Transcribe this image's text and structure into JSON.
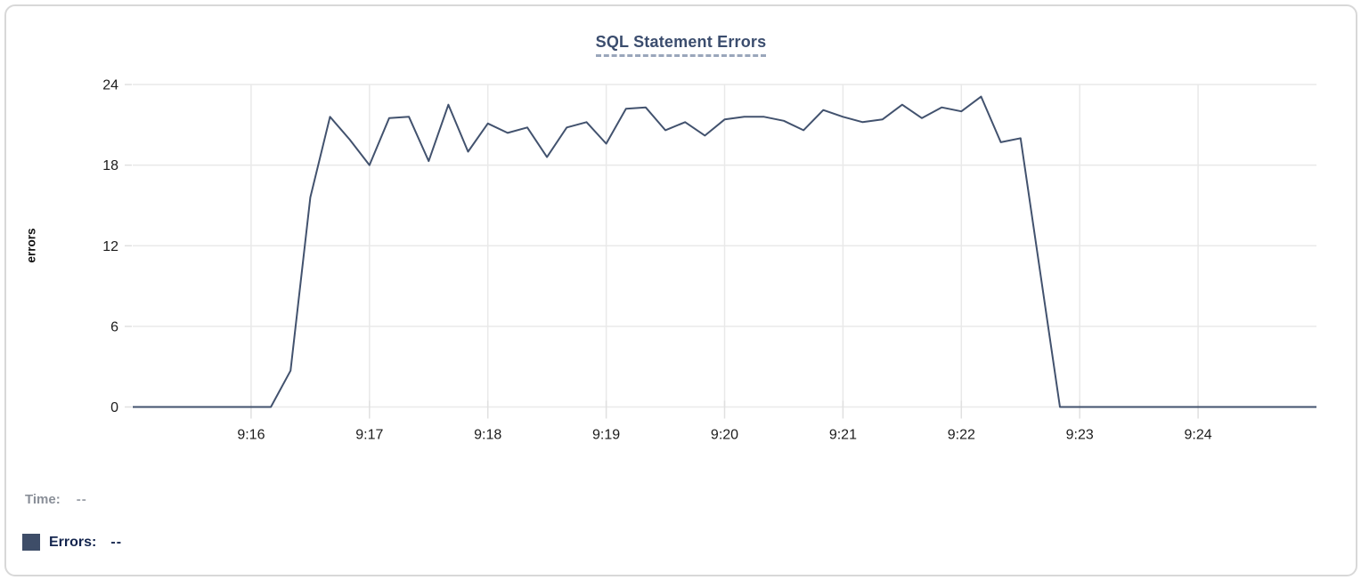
{
  "chart": {
    "y_axis_title": "errors"
  },
  "chart_data": {
    "type": "line",
    "title": "SQL Statement Errors",
    "xlabel": "",
    "ylabel": "errors",
    "ylim": [
      0,
      24
    ],
    "y_ticks": [
      0,
      6,
      12,
      18,
      24
    ],
    "x_tick_labels": [
      "9:16",
      "9:17",
      "9:18",
      "9:19",
      "9:20",
      "9:21",
      "9:22",
      "9:23",
      "9:24"
    ],
    "grid": true,
    "legend_position": "bottom-left",
    "line_color": "#3e4d68",
    "x": [
      "9:15:00",
      "9:15:10",
      "9:15:20",
      "9:15:30",
      "9:15:40",
      "9:15:50",
      "9:16:00",
      "9:16:10",
      "9:16:20",
      "9:16:30",
      "9:16:40",
      "9:16:50",
      "9:17:00",
      "9:17:10",
      "9:17:20",
      "9:17:30",
      "9:17:40",
      "9:17:50",
      "9:18:00",
      "9:18:10",
      "9:18:20",
      "9:18:30",
      "9:18:40",
      "9:18:50",
      "9:19:00",
      "9:19:10",
      "9:19:20",
      "9:19:30",
      "9:19:40",
      "9:19:50",
      "9:20:00",
      "9:20:10",
      "9:20:20",
      "9:20:30",
      "9:20:40",
      "9:20:50",
      "9:21:00",
      "9:21:10",
      "9:21:20",
      "9:21:30",
      "9:21:40",
      "9:21:50",
      "9:22:00",
      "9:22:10",
      "9:22:20",
      "9:22:30",
      "9:22:40",
      "9:22:50",
      "9:23:00",
      "9:23:10",
      "9:23:20",
      "9:23:30",
      "9:23:40",
      "9:23:50",
      "9:24:00",
      "9:24:10",
      "9:24:20",
      "9:24:30",
      "9:24:40",
      "9:24:50",
      "9:25:00"
    ],
    "series": [
      {
        "name": "Errors",
        "values": [
          0,
          0,
          0,
          0,
          0,
          0,
          0,
          0,
          2.7,
          15.6,
          21.6,
          19.9,
          18,
          21.5,
          21.6,
          18.3,
          22.5,
          19,
          21.1,
          20.4,
          20.8,
          18.6,
          20.8,
          21.2,
          19.6,
          22.2,
          22.3,
          20.6,
          21.2,
          20.2,
          21.4,
          21.6,
          21.6,
          21.3,
          20.6,
          22.1,
          21.6,
          21.2,
          21.4,
          22.5,
          21.5,
          22.3,
          22,
          23.1,
          19.7,
          20,
          10,
          0,
          0,
          0,
          0,
          0,
          0,
          0,
          0,
          0,
          0,
          0,
          0,
          0,
          0
        ]
      }
    ]
  },
  "readout": {
    "time_label": "Time:",
    "time_value": "--",
    "errors_label": "Errors:",
    "errors_value": "--",
    "swatch_color": "#3e4d68"
  },
  "colors": {
    "grid": "#e9e9e9",
    "tick": "#e0e0e0",
    "axis_text": "#1c1c1c",
    "line": "#42526e"
  }
}
